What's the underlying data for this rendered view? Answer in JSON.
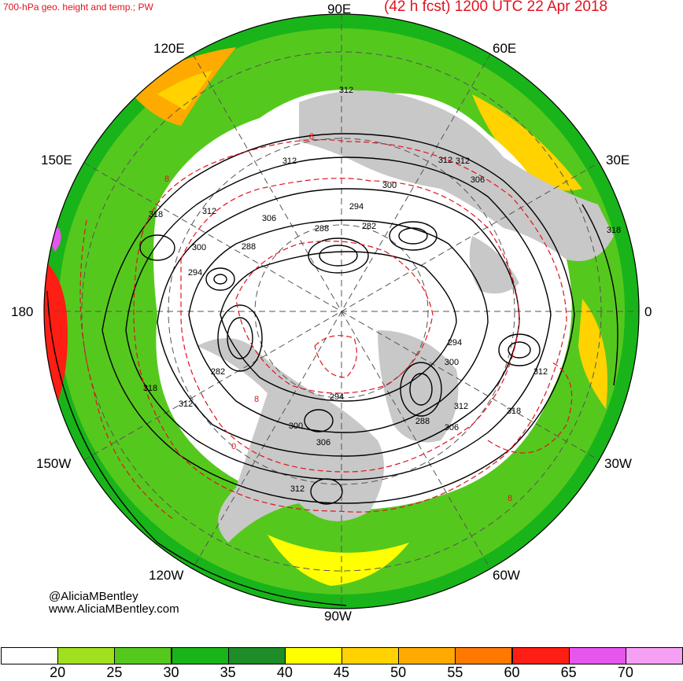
{
  "header": {
    "left_title": "700-hPa geo. height and temp.; PW",
    "right_title": "(42 h fcst) 1200 UTC 22 Apr 2018"
  },
  "longitude_labels": {
    "lon_90e": "90E",
    "lon_60e": "60E",
    "lon_120e": "120E",
    "lon_150e": "150E",
    "lon_30e": "30E",
    "lon_180": "180",
    "lon_0": "0",
    "lon_150w": "150W",
    "lon_30w": "30W",
    "lon_120w": "120W",
    "lon_60w": "60W",
    "lon_90w": "90W"
  },
  "height_contour_labels": [
    {
      "id": "h312-a",
      "text": "312"
    },
    {
      "id": "h312-b",
      "text": "312"
    },
    {
      "id": "h312-c",
      "text": "312"
    },
    {
      "id": "h306-a",
      "text": "306"
    },
    {
      "id": "h300-a",
      "text": "300"
    },
    {
      "id": "h294-a",
      "text": "294"
    },
    {
      "id": "h288-a",
      "text": "288"
    },
    {
      "id": "h282-a",
      "text": "282"
    },
    {
      "id": "h318-a",
      "text": "318"
    },
    {
      "id": "h312-d",
      "text": "312"
    },
    {
      "id": "h306-b",
      "text": "306"
    },
    {
      "id": "h300-b",
      "text": "300"
    },
    {
      "id": "h294-b",
      "text": "294"
    },
    {
      "id": "h288-b",
      "text": "288"
    },
    {
      "id": "h318-b",
      "text": "318"
    },
    {
      "id": "h312-e",
      "text": "312"
    },
    {
      "id": "h282-b",
      "text": "282"
    },
    {
      "id": "h312-f",
      "text": "312"
    },
    {
      "id": "h300-c",
      "text": "300"
    },
    {
      "id": "h306-c",
      "text": "306"
    },
    {
      "id": "h294-c",
      "text": "294"
    },
    {
      "id": "h300-d",
      "text": "300"
    },
    {
      "id": "h294-d",
      "text": "294"
    },
    {
      "id": "h312-g",
      "text": "312"
    },
    {
      "id": "h306-d",
      "text": "306"
    },
    {
      "id": "h288-c",
      "text": "288"
    },
    {
      "id": "h312-h",
      "text": "312"
    },
    {
      "id": "h318-c",
      "text": "318"
    },
    {
      "id": "h312-i",
      "text": "312"
    },
    {
      "id": "h318-d",
      "text": "318"
    }
  ],
  "temp_contour_labels": [
    {
      "id": "t8-a",
      "text": "8"
    },
    {
      "id": "t8-b",
      "text": "8"
    },
    {
      "id": "t8-c",
      "text": "8"
    },
    {
      "id": "t0-a",
      "text": "0"
    },
    {
      "id": "t8-d",
      "text": "8"
    }
  ],
  "credits": {
    "handle": "@AliciaMBentley",
    "website": "www.AliciaMBentley.com"
  },
  "colorbar": {
    "colors": [
      "#ffffff",
      "#a0e01e",
      "#55c81e",
      "#19b419",
      "#1e8c28",
      "#ffff00",
      "#ffd200",
      "#ffaa00",
      "#ff7800",
      "#ff1e14",
      "#e655ee",
      "#f5a0f5"
    ],
    "labels": [
      "20",
      "25",
      "30",
      "35",
      "40",
      "45",
      "50",
      "55",
      "60",
      "65",
      "70"
    ]
  }
}
